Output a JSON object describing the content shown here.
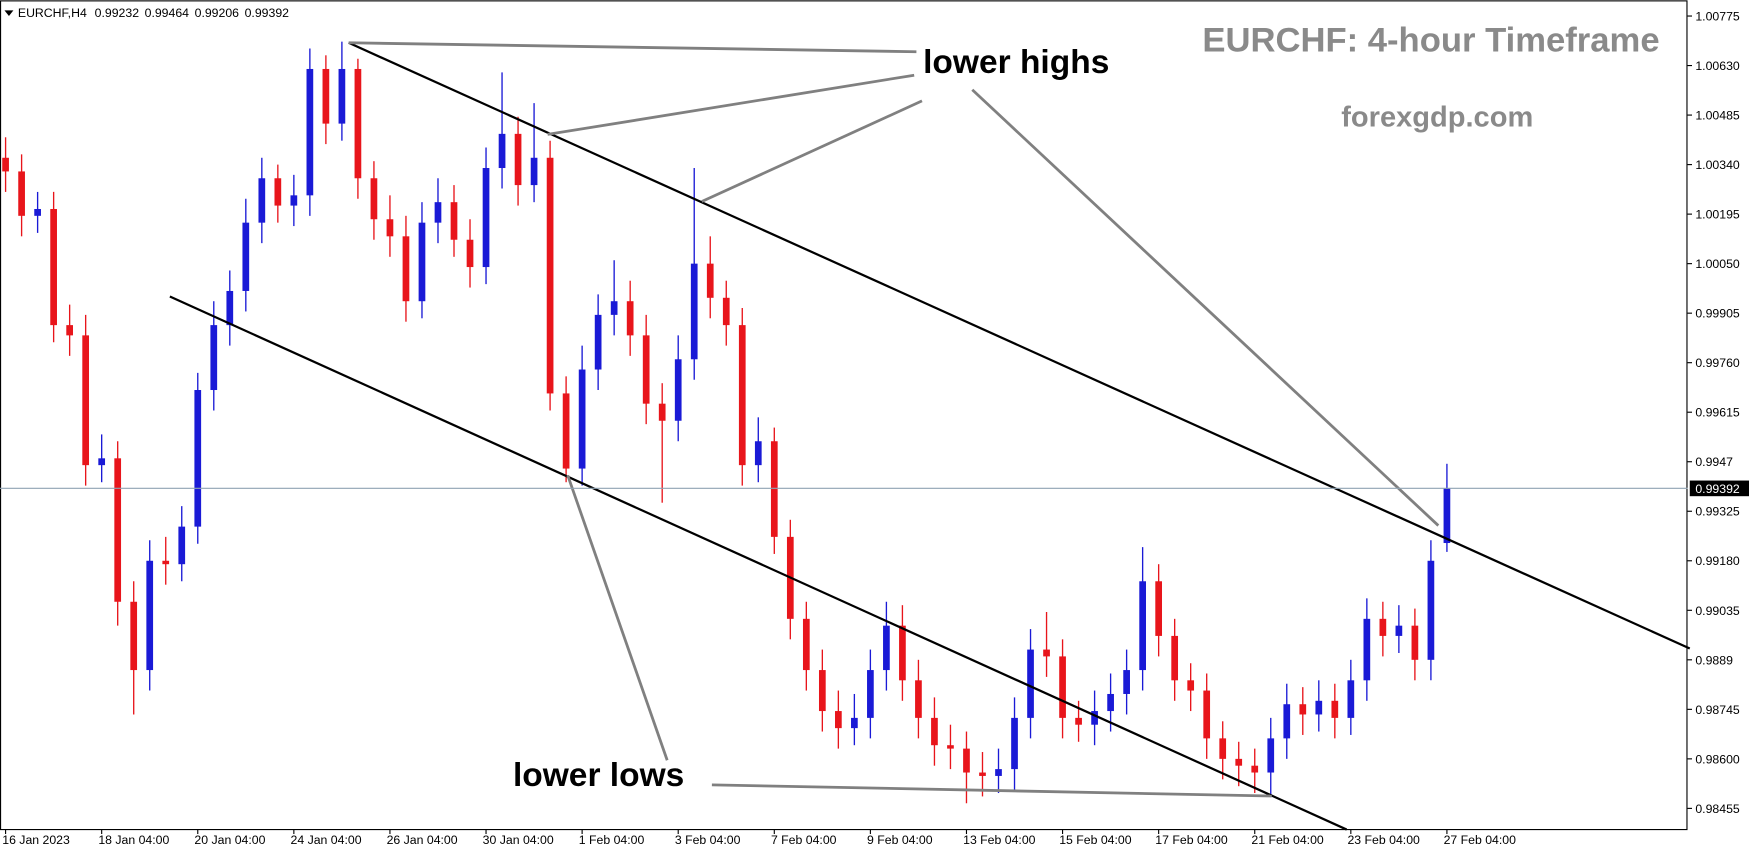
{
  "chart_data": {
    "type": "candlestick",
    "symbol": "EURCHF,H4",
    "title": "EURCHF: 4-hour Timeframe",
    "subtitle": "forexgdp.com",
    "annotations": [
      "lower highs",
      "lower lows"
    ],
    "up_color": "#1a1ad6",
    "down_color": "#e8151b",
    "categories": [
      "16 Jan 2023",
      null,
      null,
      null,
      null,
      null,
      "18 Jan 04:00",
      null,
      null,
      null,
      null,
      null,
      "20 Jan 04:00",
      null,
      null,
      null,
      null,
      null,
      "24 Jan 04:00",
      null,
      null,
      null,
      null,
      null,
      "26 Jan 04:00",
      null,
      null,
      null,
      null,
      null,
      "30 Jan 04:00",
      null,
      null,
      null,
      null,
      null,
      "1 Feb 04:00",
      null,
      null,
      null,
      null,
      null,
      "3 Feb 04:00",
      null,
      null,
      null,
      null,
      null,
      "7 Feb 04:00",
      null,
      null,
      null,
      null,
      null,
      "9 Feb 04:00",
      null,
      null,
      null,
      null,
      null,
      "13 Feb 04:00",
      null,
      null,
      null,
      null,
      null,
      "15 Feb 04:00",
      null,
      null,
      null,
      null,
      null,
      "17 Feb 04:00",
      null,
      null,
      null,
      null,
      null,
      "21 Feb 04:00",
      null,
      null,
      null,
      null,
      null,
      "23 Feb 04:00",
      null,
      null,
      null,
      null,
      null,
      "27 Feb 04:00"
    ],
    "open": [
      1.0036,
      1.0032,
      1.0019,
      1.0021,
      0.9987,
      0.9984,
      0.9946,
      0.9948,
      0.9906,
      0.9886,
      0.9918,
      0.9917,
      0.9928,
      0.9968,
      0.9987,
      0.9997,
      1.0017,
      1.003,
      1.0022,
      1.0025,
      1.0062,
      1.0046,
      1.0062,
      1.003,
      1.0018,
      1.0013,
      0.9994,
      1.0017,
      1.0023,
      1.0012,
      1.0004,
      1.0033,
      1.0043,
      1.0028,
      1.0036,
      0.9967,
      0.9945,
      0.9974,
      0.999,
      0.9994,
      0.9984,
      0.9964,
      0.9959,
      0.9977,
      1.0005,
      0.9995,
      0.9987,
      0.9946,
      0.9953,
      0.9925,
      0.9901,
      0.9886,
      0.9874,
      0.9869,
      0.9872,
      0.9886,
      0.9899,
      0.9883,
      0.9872,
      0.9864,
      0.9863,
      0.9856,
      0.9855,
      0.9857,
      0.9872,
      0.9892,
      0.989,
      0.9872,
      0.987,
      0.9874,
      0.9879,
      0.9886,
      0.9912,
      0.9896,
      0.9883,
      0.988,
      0.9866,
      0.986,
      0.9858,
      0.9856,
      0.9866,
      0.9876,
      0.9873,
      0.9877,
      0.9872,
      0.9883,
      0.9901,
      0.9896,
      0.9899,
      0.9889,
      0.99232
    ],
    "high": [
      1.0042,
      1.0037,
      1.0026,
      1.0026,
      0.9993,
      0.999,
      0.9955,
      0.9953,
      0.9912,
      0.9924,
      0.9925,
      0.9934,
      0.9973,
      0.9994,
      1.0003,
      1.0024,
      1.0036,
      1.0034,
      1.0031,
      1.0068,
      1.0066,
      1.007,
      1.0065,
      1.0035,
      1.0025,
      1.0019,
      1.0023,
      1.003,
      1.0028,
      1.0018,
      1.0039,
      1.0061,
      1.0048,
      1.0052,
      1.0041,
      0.9972,
      0.9981,
      0.9996,
      1.0006,
      1.0,
      0.999,
      0.997,
      0.9984,
      1.0033,
      1.0013,
      1.0,
      0.9992,
      0.996,
      0.9957,
      0.993,
      0.9906,
      0.9892,
      0.988,
      0.9879,
      0.9892,
      0.9906,
      0.9905,
      0.9889,
      0.9878,
      0.987,
      0.9868,
      0.9862,
      0.9863,
      0.9878,
      0.9898,
      0.9903,
      0.9895,
      0.9877,
      0.988,
      0.9885,
      0.9892,
      0.9922,
      0.9917,
      0.9901,
      0.9888,
      0.9885,
      0.9871,
      0.9865,
      0.9863,
      0.9872,
      0.9882,
      0.9881,
      0.9883,
      0.9882,
      0.9889,
      0.9907,
      0.9906,
      0.9905,
      0.9904,
      0.9924,
      0.99464
    ],
    "low": [
      1.0026,
      1.0013,
      1.0014,
      0.9982,
      0.9978,
      0.994,
      0.9941,
      0.9899,
      0.9873,
      0.988,
      0.9911,
      0.9912,
      0.9923,
      0.9962,
      0.9981,
      0.9991,
      1.0011,
      1.0017,
      1.0016,
      1.0019,
      1.004,
      1.0041,
      1.0024,
      1.0012,
      1.0007,
      0.9988,
      0.9989,
      1.0011,
      1.0007,
      0.9998,
      0.9999,
      1.0027,
      1.0022,
      1.0023,
      0.9962,
      0.9941,
      0.994,
      0.9968,
      0.9984,
      0.9978,
      0.9958,
      0.9935,
      0.9953,
      0.9971,
      0.9989,
      0.9981,
      0.994,
      0.9941,
      0.992,
      0.9895,
      0.988,
      0.9868,
      0.9863,
      0.9864,
      0.9866,
      0.988,
      0.9877,
      0.9866,
      0.9858,
      0.9857,
      0.9847,
      0.9849,
      0.985,
      0.9851,
      0.9866,
      0.9884,
      0.9866,
      0.9865,
      0.9864,
      0.9868,
      0.9873,
      0.988,
      0.989,
      0.9877,
      0.9874,
      0.986,
      0.9854,
      0.9852,
      0.985,
      0.9849,
      0.986,
      0.9867,
      0.9868,
      0.9866,
      0.9867,
      0.9877,
      0.989,
      0.9891,
      0.9883,
      0.9883,
      0.99206
    ],
    "close": [
      1.0032,
      1.0019,
      1.0021,
      0.9987,
      0.9984,
      0.9946,
      0.9948,
      0.9906,
      0.9886,
      0.9918,
      0.9917,
      0.9928,
      0.9968,
      0.9987,
      0.9997,
      1.0017,
      1.003,
      1.0022,
      1.0025,
      1.0062,
      1.0046,
      1.0062,
      1.003,
      1.0018,
      1.0013,
      0.9994,
      1.0017,
      1.0023,
      1.0012,
      1.0004,
      1.0033,
      1.0043,
      1.0028,
      1.0036,
      0.9967,
      0.9945,
      0.9974,
      0.999,
      0.9994,
      0.9984,
      0.9964,
      0.9959,
      0.9977,
      1.0005,
      0.9995,
      0.9987,
      0.9946,
      0.9953,
      0.9925,
      0.9901,
      0.9886,
      0.9874,
      0.9869,
      0.9872,
      0.9886,
      0.9899,
      0.9883,
      0.9872,
      0.9864,
      0.9863,
      0.9856,
      0.9855,
      0.9857,
      0.9872,
      0.9892,
      0.989,
      0.9872,
      0.987,
      0.9874,
      0.9879,
      0.9886,
      0.9912,
      0.9896,
      0.9883,
      0.988,
      0.9866,
      0.986,
      0.9858,
      0.9856,
      0.9866,
      0.9876,
      0.9873,
      0.9877,
      0.9872,
      0.9883,
      0.9901,
      0.9896,
      0.9899,
      0.9889,
      0.9918,
      0.99392
    ],
    "ylim": [
      0.98393,
      1.00821
    ],
    "yticks": [
      1.00775,
      {
        "value": 1.0063,
        "label": "1.00630"
      },
      1.00485,
      {
        "value": 1.0034,
        "label": "1.00340"
      },
      1.00195,
      {
        "value": 1.0005,
        "label": "1.00050"
      },
      0.99905,
      {
        "value": 0.9976,
        "label": "0.99760"
      },
      0.99615,
      0.9947,
      0.99325,
      {
        "value": 0.9918,
        "label": "0.99180"
      },
      0.99035,
      0.9889,
      0.98745,
      {
        "value": 0.986,
        "label": "0.98600"
      },
      0.98455
    ],
    "grid": false
  }
}
